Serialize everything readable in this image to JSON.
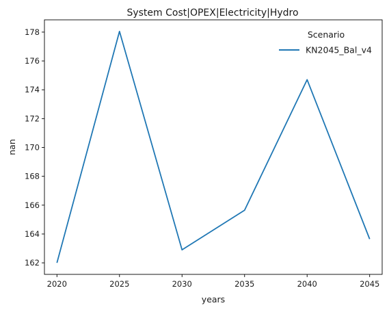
{
  "chart_data": {
    "type": "line",
    "title": "System Cost|OPEX|Electricity|Hydro",
    "xlabel": "years",
    "ylabel": "nan",
    "x": [
      2020,
      2025,
      2030,
      2035,
      2040,
      2045
    ],
    "series": [
      {
        "name": "KN2045_Bal_v4",
        "values": [
          162.0,
          178.05,
          162.9,
          165.65,
          174.7,
          163.65
        ],
        "color": "#1f77b4"
      }
    ],
    "xticks": [
      2020,
      2025,
      2030,
      2035,
      2040,
      2045
    ],
    "yticks": [
      162,
      164,
      166,
      168,
      170,
      172,
      174,
      176,
      178
    ],
    "xlim": [
      2019,
      2046
    ],
    "ylim": [
      161.2,
      178.85
    ],
    "grid": false,
    "legend": {
      "title": "Scenario",
      "placement": "top-right"
    }
  }
}
